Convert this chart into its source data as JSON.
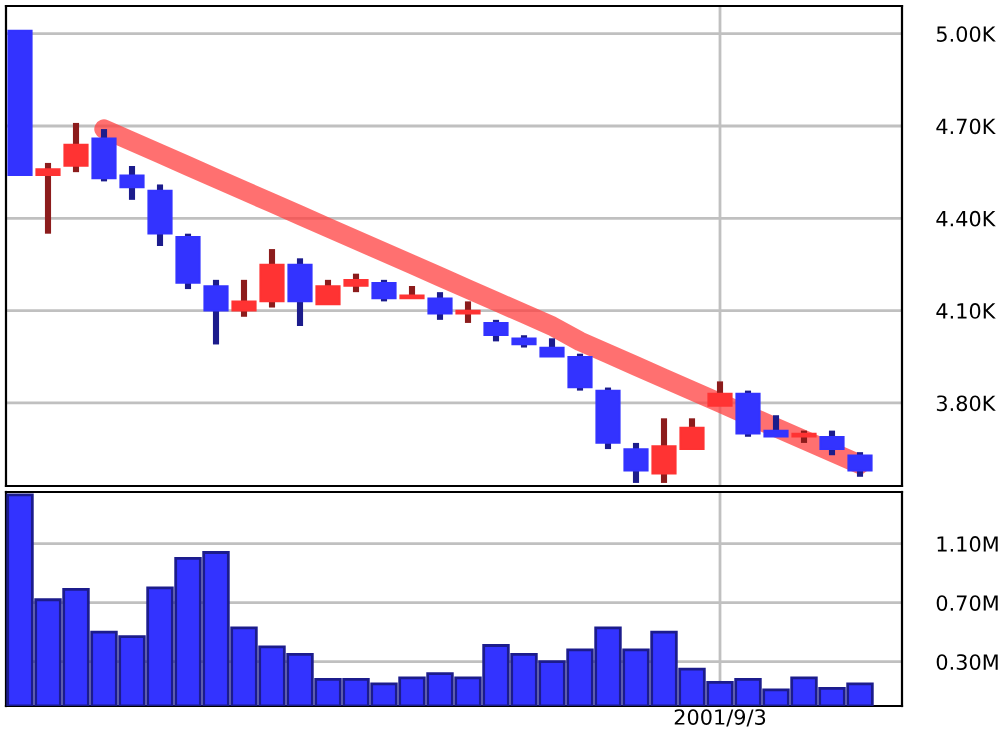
{
  "chart_data": [
    {
      "type": "candlestick",
      "categories": [
        null,
        null,
        null,
        null,
        null,
        null,
        null,
        null,
        null,
        null,
        null,
        null,
        null,
        null,
        null,
        null,
        null,
        null,
        null,
        null,
        null,
        null,
        null,
        null,
        null,
        null,
        null,
        null,
        null,
        null,
        null
      ],
      "ohlc": [
        [
          5.01,
          5.01,
          4.54,
          4.54
        ],
        [
          4.54,
          4.58,
          4.35,
          4.56
        ],
        [
          4.57,
          4.71,
          4.55,
          4.64
        ],
        [
          4.66,
          4.69,
          4.52,
          4.53
        ],
        [
          4.54,
          4.57,
          4.46,
          4.5
        ],
        [
          4.49,
          4.51,
          4.31,
          4.35
        ],
        [
          4.34,
          4.35,
          4.17,
          4.19
        ],
        [
          4.18,
          4.2,
          3.99,
          4.1
        ],
        [
          4.1,
          4.2,
          4.08,
          4.13
        ],
        [
          4.13,
          4.3,
          4.11,
          4.25
        ],
        [
          4.25,
          4.27,
          4.05,
          4.13
        ],
        [
          4.12,
          4.2,
          4.12,
          4.18
        ],
        [
          4.18,
          4.22,
          4.16,
          4.2
        ],
        [
          4.19,
          4.2,
          4.13,
          4.14
        ],
        [
          4.14,
          4.18,
          4.14,
          4.15
        ],
        [
          4.14,
          4.16,
          4.07,
          4.09
        ],
        [
          4.09,
          4.13,
          4.06,
          4.1
        ],
        [
          4.06,
          4.07,
          4.0,
          4.02
        ],
        [
          4.01,
          4.02,
          3.98,
          3.99
        ],
        [
          3.98,
          4.01,
          3.95,
          3.95
        ],
        [
          3.95,
          3.96,
          3.84,
          3.85
        ],
        [
          3.84,
          3.85,
          3.65,
          3.67
        ],
        [
          3.65,
          3.67,
          3.54,
          3.58
        ],
        [
          3.57,
          3.75,
          3.54,
          3.66
        ],
        [
          3.65,
          3.75,
          3.65,
          3.72
        ],
        [
          3.79,
          3.87,
          3.79,
          3.83
        ],
        [
          3.83,
          3.84,
          3.69,
          3.7
        ],
        [
          3.71,
          3.76,
          3.69,
          3.69
        ],
        [
          3.69,
          3.71,
          3.67,
          3.7
        ],
        [
          3.69,
          3.71,
          3.63,
          3.65
        ],
        [
          3.63,
          3.64,
          3.56,
          3.58
        ]
      ],
      "colors": [
        "#3333ff",
        "#ff3333",
        "#ff3333",
        "#3333ff",
        "#3333ff",
        "#3333ff",
        "#3333ff",
        "#3333ff",
        "#ff3333",
        "#ff3333",
        "#3333ff",
        "#ff3333",
        "#ff3333",
        "#3333ff",
        "#ff3333",
        "#3333ff",
        "#ff3333",
        "#3333ff",
        "#3333ff",
        "#3333ff",
        "#3333ff",
        "#3333ff",
        "#3333ff",
        "#ff3333",
        "#ff3333",
        "#ff3333",
        "#3333ff",
        "#3333ff",
        "#ff3333",
        "#3333ff",
        "#3333ff"
      ],
      "series": [
        {
          "type": "line",
          "color": "#ff4040",
          "values": [
            null,
            null,
            null,
            4.69,
            4.65,
            4.61,
            4.57,
            4.53,
            4.49,
            4.45,
            4.41,
            4.37,
            4.33,
            4.29,
            4.25,
            4.21,
            4.17,
            4.13,
            4.09,
            4.05,
            4.0,
            3.96,
            3.92,
            3.88,
            3.84,
            3.8,
            3.76,
            3.72,
            3.68,
            3.64,
            3.6
          ]
        }
      ],
      "ylim": [
        3.53,
        5.09
      ],
      "yticks": [
        {
          "value": 3.8,
          "label": "3.80K"
        },
        {
          "value": 4.1,
          "label": "4.10K"
        },
        {
          "value": 4.4,
          "label": "4.40K"
        },
        {
          "value": 4.7,
          "label": "4.70K"
        },
        {
          "value": 5.0,
          "label": "5.00K"
        }
      ],
      "grid": true,
      "tick_labels": "y"
    },
    {
      "type": "bar",
      "categories": [
        null,
        null,
        null,
        null,
        null,
        null,
        null,
        null,
        null,
        null,
        null,
        null,
        null,
        null,
        null,
        null,
        null,
        null,
        null,
        null,
        null,
        null,
        null,
        null,
        null,
        "2001/9/3",
        null,
        null,
        null,
        null,
        null
      ],
      "values": [
        1.43,
        0.72,
        0.79,
        0.5,
        0.47,
        0.8,
        1.0,
        1.04,
        0.53,
        0.4,
        0.35,
        0.18,
        0.18,
        0.15,
        0.19,
        0.22,
        0.19,
        0.41,
        0.35,
        0.3,
        0.38,
        0.53,
        0.38,
        0.5,
        0.25,
        0.16,
        0.18,
        0.11,
        0.19,
        0.12,
        0.15
      ],
      "color": "#3333ff",
      "ylim": [
        0,
        1.45
      ],
      "yticks": [
        {
          "value": 0.3,
          "label": "0.30M"
        },
        {
          "value": 0.7,
          "label": "0.70M"
        },
        {
          "value": 1.1,
          "label": "1.10M"
        }
      ],
      "grid": true
    }
  ]
}
